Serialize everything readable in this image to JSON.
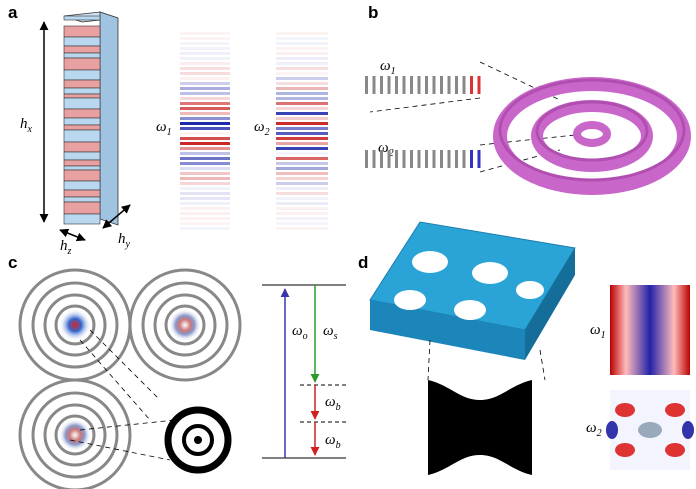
{
  "panels": {
    "a": {
      "label": "a",
      "hx": {
        "main": "h",
        "sub": "x"
      },
      "hy": {
        "main": "h",
        "sub": "y"
      },
      "hz": {
        "main": "h",
        "sub": "z"
      },
      "omega1": {
        "main": "ω",
        "sub": "1"
      },
      "omega2": {
        "main": "ω",
        "sub": "2"
      }
    },
    "b": {
      "label": "b",
      "omega1": {
        "main": "ω",
        "sub": "1"
      },
      "omega2": {
        "main": "ω",
        "sub": "2"
      }
    },
    "c": {
      "label": "c",
      "omega_o": {
        "main": "ω",
        "sub": "o"
      },
      "omega_s": {
        "main": "ω",
        "sub": "s"
      },
      "omega_b_upper": {
        "main": "ω",
        "sub": "b"
      },
      "omega_b_lower": {
        "main": "ω",
        "sub": "b"
      }
    },
    "d": {
      "label": "d",
      "omega1": {
        "main": "ω",
        "sub": "1"
      },
      "omega2": {
        "main": "ω",
        "sub": "2"
      }
    }
  }
}
